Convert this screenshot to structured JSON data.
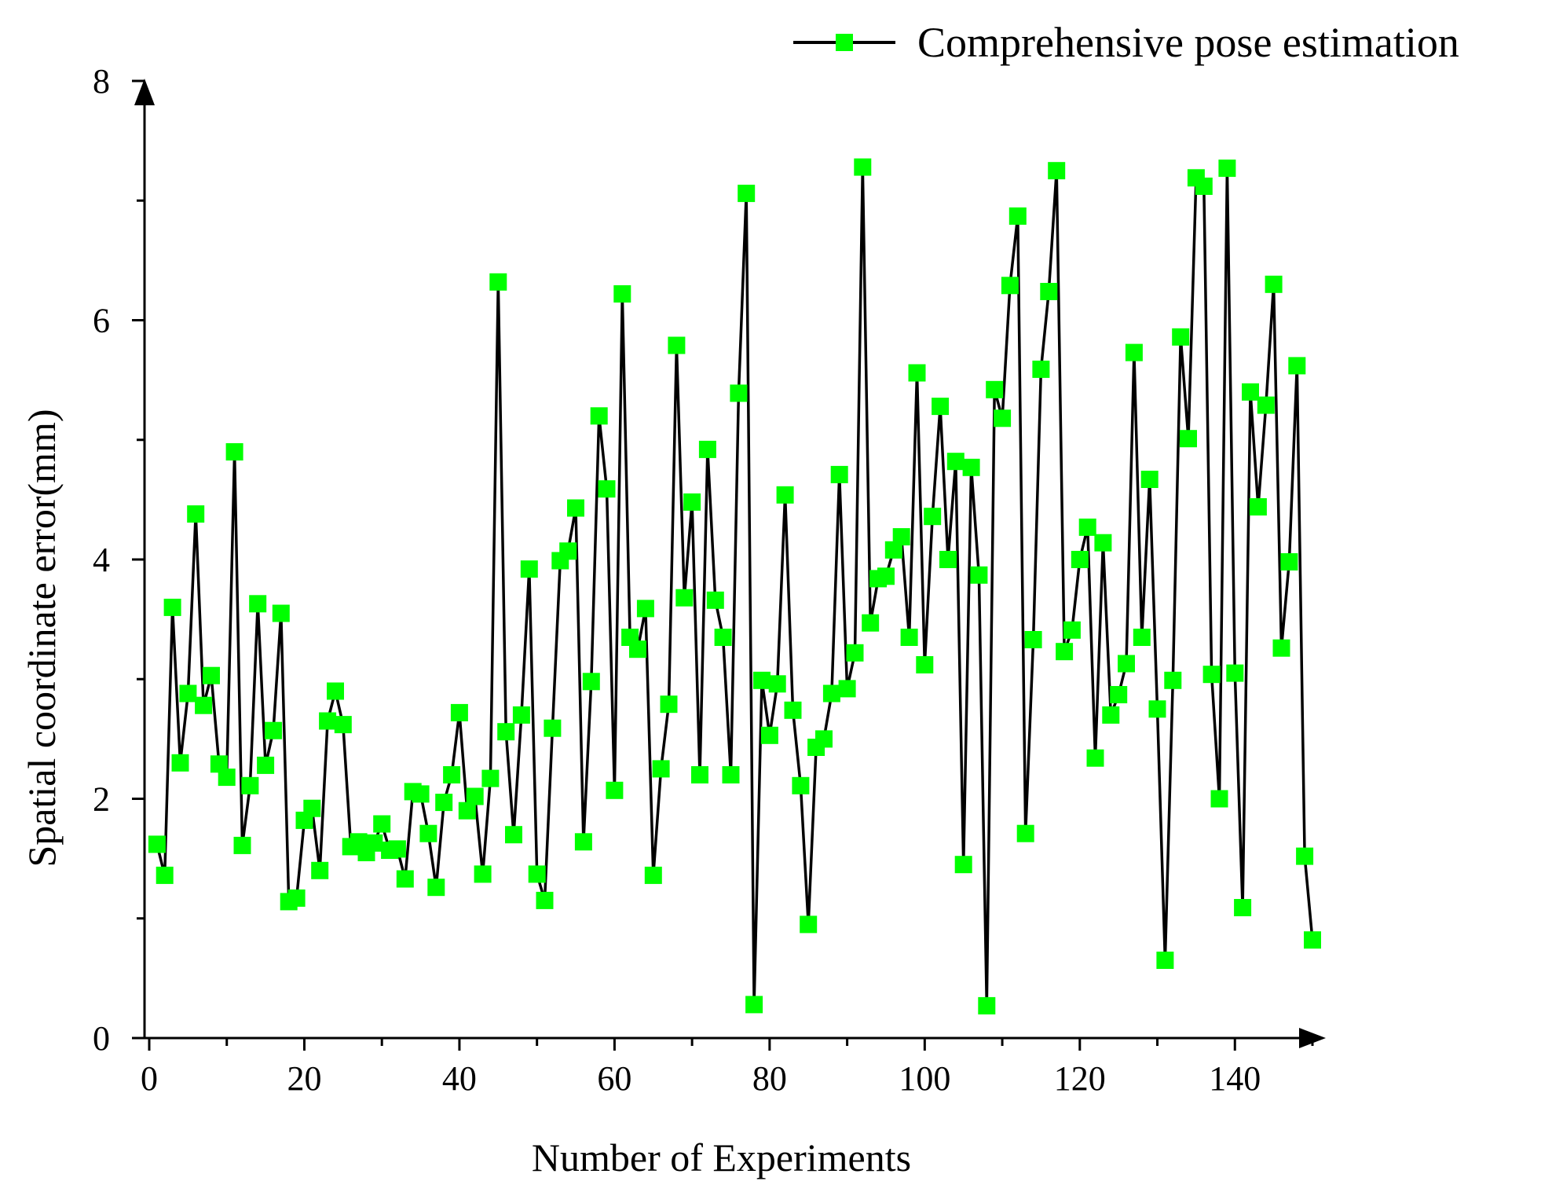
{
  "chart_data": {
    "type": "line",
    "xlabel": "Number of Experiments",
    "ylabel": "Spatial coordinate error(mm)",
    "xlim": [
      -1,
      151
    ],
    "ylim": [
      0,
      8
    ],
    "x_ticks": [
      0,
      20,
      40,
      60,
      80,
      100,
      120,
      140
    ],
    "y_ticks": [
      0,
      2,
      4,
      6,
      8
    ],
    "grid": false,
    "legend_position": "top-right",
    "series": [
      {
        "name": "Comprehensive pose estimation",
        "line_color": "#000000",
        "marker": "square",
        "marker_color": "#00ff00",
        "x": [
          1,
          2,
          3,
          4,
          5,
          6,
          7,
          8,
          9,
          10,
          11,
          12,
          13,
          14,
          15,
          16,
          17,
          18,
          19,
          20,
          21,
          22,
          23,
          24,
          25,
          26,
          27,
          28,
          29,
          30,
          31,
          32,
          33,
          34,
          35,
          36,
          37,
          38,
          39,
          40,
          41,
          42,
          43,
          44,
          45,
          46,
          47,
          48,
          49,
          50,
          51,
          52,
          53,
          54,
          55,
          56,
          57,
          58,
          59,
          60,
          61,
          62,
          63,
          64,
          65,
          66,
          67,
          68,
          69,
          70,
          71,
          72,
          73,
          74,
          75,
          76,
          77,
          78,
          79,
          80,
          81,
          82,
          83,
          84,
          85,
          86,
          87,
          88,
          89,
          90,
          91,
          92,
          93,
          94,
          95,
          96,
          97,
          98,
          99,
          100,
          101,
          102,
          103,
          104,
          105,
          106,
          107,
          108,
          109,
          110,
          111,
          112,
          113,
          114,
          115,
          116,
          117,
          118,
          119,
          120,
          121,
          122,
          123,
          124,
          125,
          126,
          127,
          128,
          129,
          130,
          131,
          132,
          133,
          134,
          135,
          136,
          137,
          138,
          139,
          140,
          141,
          142,
          143,
          144,
          145,
          146,
          147,
          148,
          149,
          150
        ],
        "y": [
          1.62,
          1.36,
          3.6,
          2.3,
          2.88,
          4.38,
          2.78,
          3.03,
          2.29,
          2.18,
          4.9,
          1.61,
          2.11,
          3.63,
          2.28,
          2.57,
          3.55,
          1.14,
          1.17,
          1.82,
          1.92,
          1.4,
          2.65,
          2.9,
          2.62,
          1.6,
          1.64,
          1.55,
          1.63,
          1.79,
          1.57,
          1.58,
          1.33,
          2.06,
          2.04,
          1.71,
          1.26,
          1.97,
          2.2,
          2.72,
          1.9,
          2.02,
          1.37,
          2.17,
          6.32,
          2.56,
          1.7,
          2.7,
          3.92,
          1.37,
          1.15,
          2.59,
          3.99,
          4.07,
          4.43,
          1.64,
          2.98,
          5.2,
          4.59,
          2.07,
          6.22,
          3.35,
          3.25,
          3.59,
          1.36,
          2.25,
          2.79,
          5.79,
          3.68,
          4.48,
          2.2,
          4.92,
          3.66,
          3.35,
          2.2,
          5.39,
          7.06,
          0.28,
          2.99,
          2.53,
          2.96,
          4.54,
          2.74,
          2.11,
          0.95,
          2.43,
          2.5,
          2.88,
          4.71,
          2.92,
          3.22,
          7.28,
          3.47,
          3.84,
          3.86,
          4.08,
          4.19,
          3.35,
          5.56,
          3.12,
          4.36,
          5.28,
          4.0,
          4.82,
          1.45,
          4.77,
          3.87,
          0.27,
          5.42,
          5.18,
          6.29,
          6.87,
          1.71,
          3.33,
          5.59,
          6.24,
          7.25,
          3.23,
          3.41,
          4.0,
          4.27,
          2.34,
          4.14,
          2.7,
          2.87,
          3.13,
          5.73,
          3.35,
          4.67,
          2.75,
          0.65,
          2.99,
          5.86,
          5.01,
          7.19,
          7.12,
          3.04,
          2.0,
          7.27,
          3.05,
          1.09,
          5.4,
          4.44,
          5.29,
          6.3,
          3.26,
          3.98,
          5.62,
          1.52,
          0.82
        ]
      }
    ]
  }
}
